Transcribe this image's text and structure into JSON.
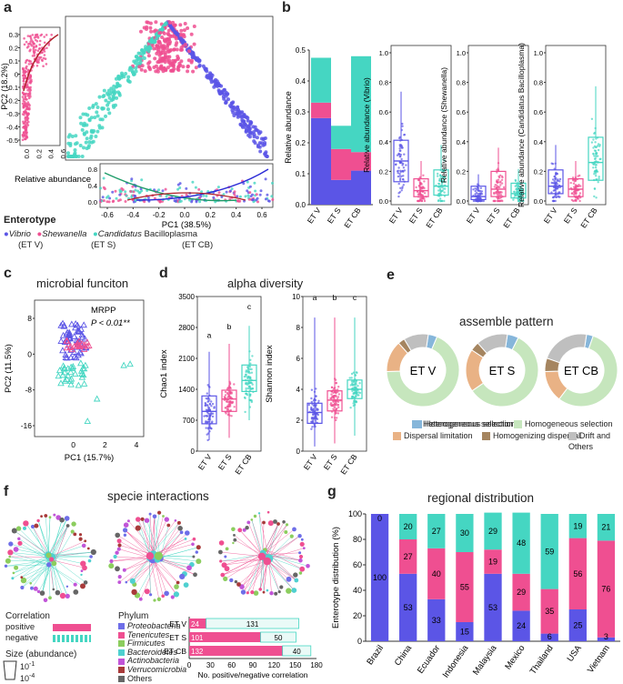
{
  "colors": {
    "v": "#5b55e6",
    "s": "#ef4f91",
    "cb": "#45d6c2",
    "hetero": "#86b6da",
    "homo": "#c6e6bd",
    "disp": "#e9b285",
    "homod": "#a58560",
    "drift": "#bfbfbf"
  },
  "panel_a": {
    "label": "a",
    "pc2": "PC2 (18.2%)",
    "pc1": "PC1 (38.5%)",
    "rel": "Relative abundance",
    "left_ticks_y": [
      "0.3",
      "0.2",
      "0.1",
      "0",
      "-0.1",
      "-0.2",
      "-0.3",
      "-0.4",
      "-0.5"
    ],
    "left_ticks_x": [
      "0.0",
      "0.2",
      "0.4",
      "0.6"
    ],
    "bottom_ticks_x": [
      "-0.6",
      "-0.4",
      "-0.2",
      "0.0",
      "0.2",
      "0.4",
      "0.6"
    ],
    "bottom_ticks_y": [
      "0.8",
      "0.4",
      "0.0"
    ],
    "enterotype": "Enterotype",
    "legend": [
      {
        "name": "Vibrio",
        "sub": "(ET V)"
      },
      {
        "name": "Shewanella",
        "sub": "(ET S)"
      },
      {
        "name": "Candidatus",
        "rest": " Bacilloplasma",
        "sub": "(ET CB)"
      }
    ]
  },
  "panel_b": {
    "label": "b",
    "ylabel1": "Relative abundance",
    "ticks1": [
      "0.4",
      "0.3",
      "0.2",
      "0.1",
      "0.0",
      "0.5"
    ],
    "cats": [
      "ET V",
      "ET S",
      "ET CB"
    ],
    "stack": [
      [
        0.28,
        0.05,
        0.145
      ],
      [
        0.08,
        0.1,
        0.075
      ],
      [
        0.11,
        0.06,
        0.31
      ]
    ],
    "ylabel2": "Relative abundance (Vibrio)",
    "ylabel3": "Relative abundance (Shewanella)",
    "ylabel4": "Relative abundance (Candidatus Bacilloplasma)",
    "ticks_box": [
      "0.0",
      "0.2",
      "0.4",
      "0.6",
      "0.8",
      "1.0"
    ]
  },
  "panel_c": {
    "label": "c",
    "title": "microbial funciton",
    "mrpp": "MRPP",
    "p": "P < 0.01**",
    "pc2": "PC2 (11.5%)",
    "pc1": "PC1 (15.7%)",
    "ticks_y": [
      "8",
      "0",
      "-8",
      "-16"
    ],
    "ticks_x": [
      "0",
      "2",
      "4"
    ]
  },
  "panel_d": {
    "label": "d",
    "title": "alpha diversity",
    "y1": "Chao1 index",
    "y2": "Shannon index",
    "ticks1": [
      "3500",
      "2800",
      "2100",
      "1400",
      "700",
      "0"
    ],
    "ticks2": [
      "10",
      "8",
      "6",
      "4",
      "2",
      "0"
    ],
    "letters": [
      "a",
      "b",
      "c"
    ],
    "cats": [
      "ET V",
      "ET S",
      "ET CB"
    ]
  },
  "panel_e": {
    "label": "e",
    "title": "assemble pattern",
    "donuts": [
      "ET V",
      "ET S",
      "ET CB"
    ],
    "donut_values": [
      [
        0.04,
        0.68,
        0.14,
        0.03,
        0.11
      ],
      [
        0.05,
        0.58,
        0.19,
        0.04,
        0.14
      ],
      [
        0.03,
        0.55,
        0.14,
        0.06,
        0.22
      ]
    ],
    "legend": [
      "Heterogeneous selection",
      "Homogeneous selection",
      "Dispersal limitation",
      "Homogenizing dispersal",
      "Drift and Others"
    ]
  },
  "panel_f": {
    "label": "f",
    "title": "specie interactions",
    "correlation": "Correlation",
    "positive": "positive",
    "negative": "negative",
    "size": "Size (abundance)",
    "s1": "10",
    "s1e": "-1",
    "s2": "10",
    "s2e": "-4",
    "phylum": "Phylum",
    "phyla": [
      "Proteobacteria",
      "Tenericutes",
      "Firmicutes",
      "Bacteroidetes",
      "Actinobacteria",
      "Verrucomicrobia",
      "Others"
    ],
    "phyla_colors": [
      "#6e6ee8",
      "#ef4f91",
      "#8ccd5e",
      "#4fd0d0",
      "#c155d8",
      "#a83a3a",
      "#666666"
    ],
    "bars": [
      {
        "cat": "ET V",
        "pos": 24,
        "neg": 131
      },
      {
        "cat": "ET S",
        "pos": 101,
        "neg": 50
      },
      {
        "cat": "ET CB",
        "pos": 132,
        "neg": 40
      }
    ],
    "xticks": [
      "0",
      "30",
      "60",
      "90",
      "120",
      "150",
      "180"
    ],
    "xlabel": "No. positive/negative correlation"
  },
  "panel_g": {
    "label": "g",
    "title": "regional distribution",
    "ylabel": "Enterotype distribution (%)",
    "yticks": [
      "0",
      "20",
      "40",
      "60",
      "80",
      "100"
    ],
    "countries": [
      "Brazil",
      "China",
      "Ecuador",
      "Indonesia",
      "Malaysia",
      "Mexico",
      "Thailand",
      "USA",
      "Vietnam"
    ],
    "v": [
      100,
      53,
      33,
      15,
      53,
      24,
      6,
      25,
      3
    ],
    "s": [
      0,
      27,
      40,
      55,
      19,
      29,
      35,
      56,
      76
    ],
    "cb": [
      0,
      20,
      27,
      30,
      29,
      48,
      59,
      19,
      21
    ],
    "v_labels": [
      "100",
      "53",
      "33",
      "15",
      "53",
      "24",
      "6",
      "25",
      "3"
    ],
    "s_labels": [
      "0",
      "27",
      "40",
      "55",
      "19",
      "29",
      "35",
      "56",
      "76"
    ],
    "cb_labels": [
      "",
      "20",
      "27",
      "30",
      "29",
      "48",
      "59",
      "19",
      "21"
    ]
  }
}
